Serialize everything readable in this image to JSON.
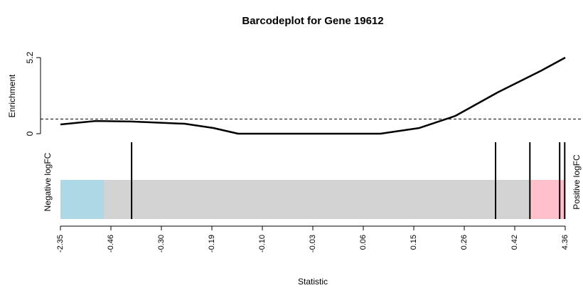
{
  "chart_data": {
    "type": "barcode",
    "title": "Barcodeplot for Gene 19612",
    "ylabel": "Enrichment",
    "xlabel": "Statistic",
    "left_label": "Negative logFC",
    "right_label": "Positive logFC",
    "xlim": [
      0,
      1
    ],
    "xticks": [
      {
        "value": 0,
        "label": "-2.35"
      },
      {
        "value": 0.1,
        "label": "-0.46"
      },
      {
        "value": 0.2,
        "label": "-0.30"
      },
      {
        "value": 0.3,
        "label": "-0.19"
      },
      {
        "value": 0.4,
        "label": "-0.10"
      },
      {
        "value": 0.5,
        "label": "-0.03"
      },
      {
        "value": 0.6,
        "label": "0.06"
      },
      {
        "value": 0.7,
        "label": "0.15"
      },
      {
        "value": 0.8,
        "label": "0.26"
      },
      {
        "value": 0.9,
        "label": "0.42"
      },
      {
        "value": 1,
        "label": "4.36"
      }
    ],
    "ylim": [
      0,
      5.2
    ],
    "yticks": [
      0,
      5.2
    ],
    "reference_line": 1,
    "enrichment": {
      "color": "#000000",
      "x": [
        0,
        0.07,
        0.141,
        0.246,
        0.303,
        0.352,
        0.634,
        0.711,
        0.782,
        0.866,
        0.951,
        1
      ],
      "values": [
        0.63,
        0.87,
        0.83,
        0.68,
        0.39,
        0,
        0,
        0.39,
        1.21,
        2.82,
        4.28,
        5.2
      ]
    },
    "regions": [
      {
        "range": [
          0,
          0.086
        ],
        "color": "#add8e6"
      },
      {
        "range": [
          0.93,
          1
        ],
        "color": "#ffc0cb"
      }
    ],
    "background_color": "#d3d3d3",
    "barcode": {
      "color": "#000000",
      "x": [
        0.141,
        0.862,
        0.93,
        0.989,
        0.999
      ]
    }
  }
}
